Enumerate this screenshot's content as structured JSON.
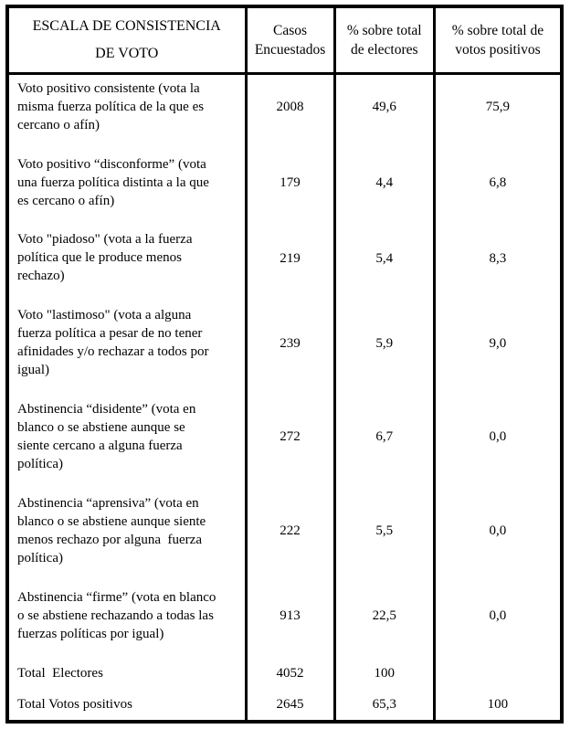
{
  "colors": {
    "background": "#ffffff",
    "border": "#000000",
    "text": "#000000"
  },
  "table": {
    "header": {
      "scale": "ESCALA DE CONSISTENCIA\nDE VOTO",
      "casos": "Casos\nEncuestados",
      "pct_electores": "% sobre total\nde electores",
      "pct_positivos": "% sobre total de\nvotos positivos"
    },
    "rows": [
      {
        "desc": "Voto positivo consistente (vota la\nmisma fuerza política de la que es\ncercano o afín)",
        "casos": "2008",
        "pct_electores": "49,6",
        "pct_positivos": "75,9",
        "total": false
      },
      {
        "desc": "Voto positivo “disconforme” (vota\nuna fuerza política distinta a la que\nes cercano o afín)",
        "casos": "179",
        "pct_electores": "4,4",
        "pct_positivos": "6,8",
        "total": false
      },
      {
        "desc": "Voto \"piadoso\" (vota a la fuerza\npolítica que le produce menos\nrechazo)",
        "casos": "219",
        "pct_electores": "5,4",
        "pct_positivos": "8,3",
        "total": false
      },
      {
        "desc": "Voto \"lastimoso\" (vota a alguna\nfuerza política a pesar de no tener\nafinidades y/o rechazar a todos por\nigual)",
        "casos": "239",
        "pct_electores": "5,9",
        "pct_positivos": "9,0",
        "total": false
      },
      {
        "desc": "Abstinencia “disidente” (vota en\nblanco o se abstiene aunque se\nsiente cercano a alguna fuerza\npolítica)",
        "casos": "272",
        "pct_electores": "6,7",
        "pct_positivos": "0,0",
        "total": false
      },
      {
        "desc": "Abstinencia “aprensiva” (vota en\nblanco o se abstiene aunque siente\nmenos rechazo por alguna  fuerza\npolítica)",
        "casos": "222",
        "pct_electores": "5,5",
        "pct_positivos": "0,0",
        "total": false
      },
      {
        "desc": "Abstinencia “firme” (vota en blanco\no se abstiene rechazando a todas las\nfuerzas políticas por igual)",
        "casos": "913",
        "pct_electores": "22,5",
        "pct_positivos": "0,0",
        "total": false
      },
      {
        "desc": "Total  Electores",
        "casos": "4052",
        "pct_electores": "100",
        "pct_positivos": "",
        "total": true
      },
      {
        "desc": "Total Votos positivos",
        "casos": "2645",
        "pct_electores": "65,3",
        "pct_positivos": "100",
        "total": true
      }
    ]
  }
}
